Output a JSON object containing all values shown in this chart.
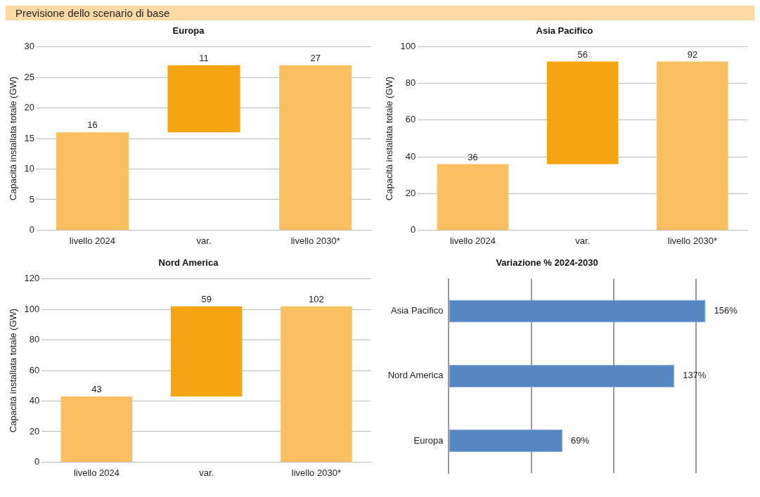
{
  "chart_data": [
    {
      "type": "other",
      "title": "Previsione dello scenario di base"
    },
    {
      "type": "bar",
      "title": "Europa",
      "ylabel": "Capacità installata totale (GW)",
      "categories": [
        "livello 2024",
        "var.",
        "livello 2030*"
      ],
      "values": [
        16,
        11,
        27
      ],
      "base": [
        0,
        16,
        0
      ],
      "colors": [
        "#f9bf60",
        "#f5a511",
        "#f9bf60"
      ],
      "ylim": [
        0,
        30
      ],
      "yticks": [
        0,
        5,
        10,
        15,
        20,
        25,
        30
      ],
      "grid": "y",
      "data_labels": true
    },
    {
      "type": "bar",
      "title": "Asia Pacifico",
      "ylabel": "Capacità installata totale (GW)",
      "categories": [
        "livello 2024",
        "var.",
        "livello 2030*"
      ],
      "values": [
        36,
        56,
        92
      ],
      "base": [
        0,
        36,
        0
      ],
      "colors": [
        "#f9bf60",
        "#f5a511",
        "#f9bf60"
      ],
      "ylim": [
        0,
        100
      ],
      "yticks": [
        0,
        20,
        40,
        60,
        80,
        100
      ],
      "grid": "y",
      "data_labels": true
    },
    {
      "type": "bar",
      "title": "Nord America",
      "ylabel": "Capacità installata totale (GW)",
      "categories": [
        "livello 2024",
        "var.",
        "livello 2030*"
      ],
      "values": [
        43,
        59,
        102
      ],
      "base": [
        0,
        43,
        0
      ],
      "colors": [
        "#f9bf60",
        "#f5a511",
        "#f9bf60"
      ],
      "ylim": [
        0,
        120
      ],
      "yticks": [
        0,
        20,
        40,
        60,
        80,
        100,
        120
      ],
      "grid": "y",
      "data_labels": true
    },
    {
      "type": "bar",
      "orientation": "horizontal",
      "title": "Variazione % 2024-2030",
      "categories": [
        "Asia Pacifico",
        "Nord America",
        "Europa"
      ],
      "values": [
        156,
        137,
        69
      ],
      "value_labels": [
        "156%",
        "137%",
        "69%"
      ],
      "color": "#5687c2",
      "xticks": [
        {
          "value": 50,
          "label": null
        },
        {
          "value": 100,
          "label": null
        },
        {
          "value": 150,
          "label": null
        }
      ],
      "grid": "x",
      "tick_labels": "y"
    }
  ]
}
